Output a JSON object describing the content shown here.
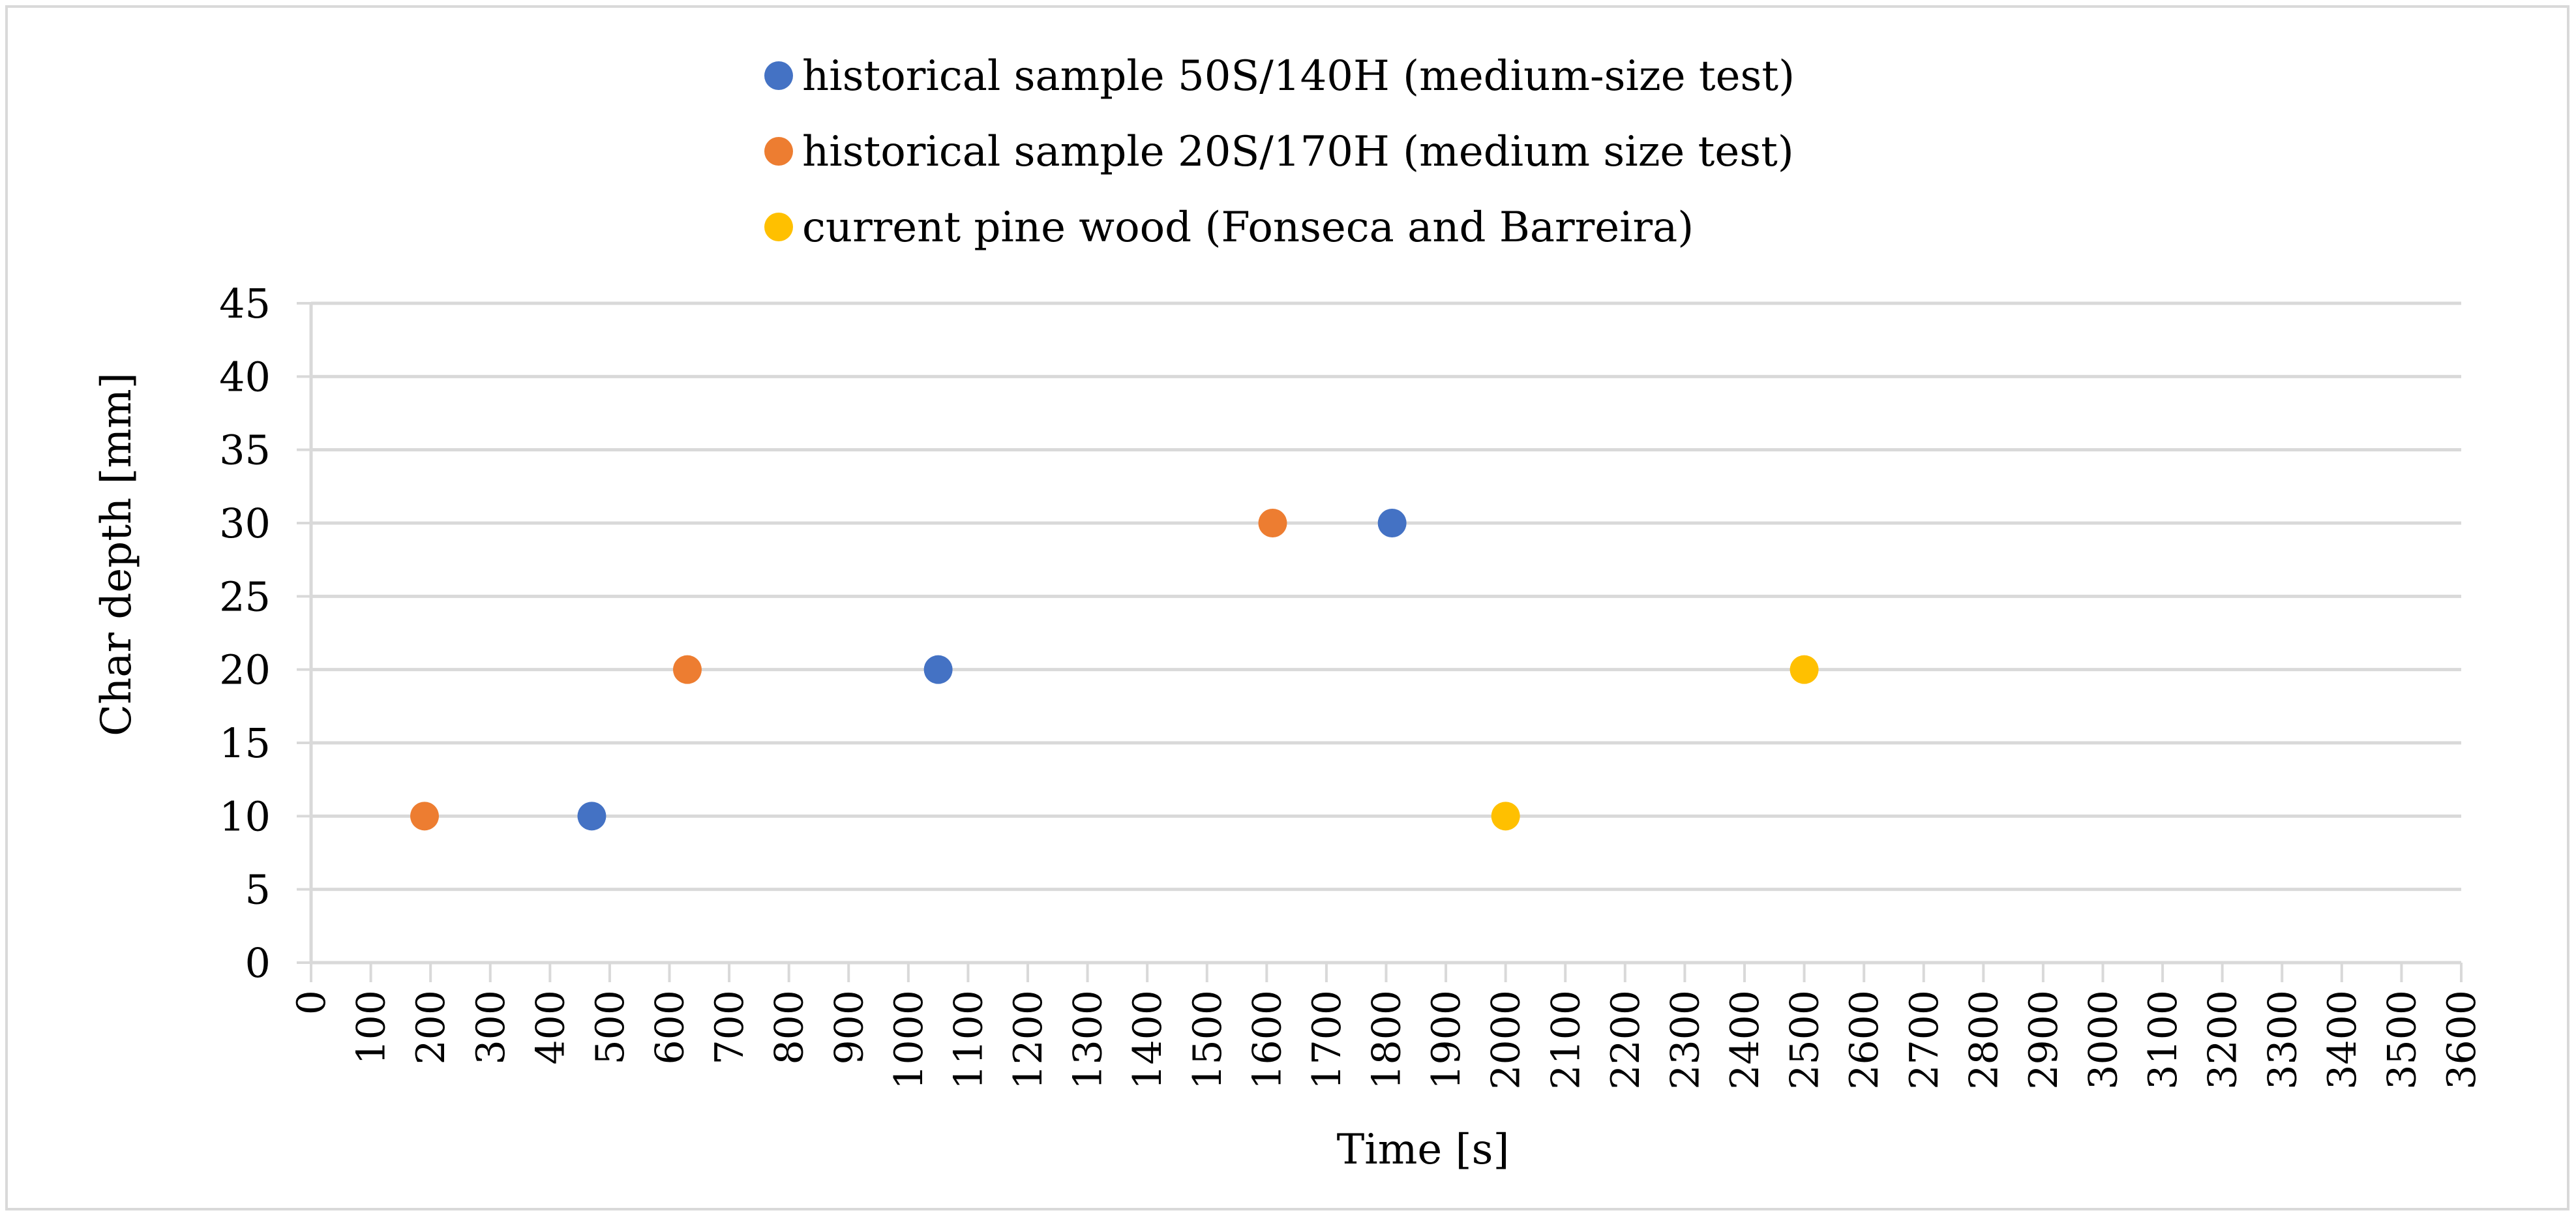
{
  "chart_data": {
    "type": "scatter",
    "xlabel": "Time [s]",
    "ylabel": "Char depth [mm]",
    "xlim": [
      0,
      3600
    ],
    "ylim": [
      0,
      45
    ],
    "x_ticks": [
      0,
      100,
      200,
      300,
      400,
      500,
      600,
      700,
      800,
      900,
      1000,
      1100,
      1200,
      1300,
      1400,
      1500,
      1600,
      1700,
      1800,
      1900,
      2000,
      2100,
      2200,
      2300,
      2400,
      2500,
      2600,
      2700,
      2800,
      2900,
      3000,
      3100,
      3200,
      3300,
      3400,
      3500,
      3600
    ],
    "y_ticks": [
      0,
      5,
      10,
      15,
      20,
      25,
      30,
      35,
      40,
      45
    ],
    "grid": "horizontal",
    "legend_position": "top",
    "series": [
      {
        "name": "historical sample 50S/140H (medium-size test)",
        "color": "#4472c4",
        "points": [
          {
            "x": 470,
            "y": 10
          },
          {
            "x": 1050,
            "y": 20
          },
          {
            "x": 1810,
            "y": 30
          }
        ]
      },
      {
        "name": "historical sample 20S/170H (medium size test)",
        "color": "#ed7d31",
        "points": [
          {
            "x": 190,
            "y": 10
          },
          {
            "x": 630,
            "y": 20
          },
          {
            "x": 1610,
            "y": 30
          }
        ]
      },
      {
        "name": "current pine wood (Fonseca and Barreira)",
        "color": "#ffc000",
        "points": [
          {
            "x": 2000,
            "y": 10
          },
          {
            "x": 2500,
            "y": 20
          }
        ]
      }
    ]
  }
}
